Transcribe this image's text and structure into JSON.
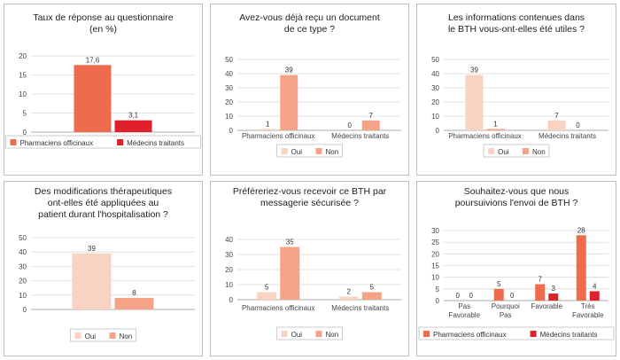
{
  "colors": {
    "light_peach": "#f9d2c2",
    "salmon": "#f4a387",
    "coral": "#ef6b4e",
    "red": "#e0202b",
    "grid": "#d9d9d9",
    "axis": "#999999"
  },
  "chart_data": [
    {
      "type": "bar",
      "title_lines": [
        "Taux de réponse au questionnaire",
        "(en %)"
      ],
      "categories": [
        ""
      ],
      "series": [
        {
          "name": "Pharmaciens officinaux",
          "values": [
            17.6
          ],
          "labels": [
            "17,6"
          ],
          "color": "#ef6b4e"
        },
        {
          "name": "Médecins traitants",
          "values": [
            3.1
          ],
          "labels": [
            "3,1"
          ],
          "color": "#e0202b"
        }
      ],
      "yticks": [
        "0",
        "5",
        "10",
        "15",
        "20"
      ],
      "ylim": [
        0,
        20
      ],
      "legend_position": "bottom"
    },
    {
      "type": "bar",
      "title_lines": [
        "Avez-vous déjà reçu un document",
        "de ce type ?"
      ],
      "categories": [
        "Pharmaciens officinaux",
        "Médecins traitants"
      ],
      "series": [
        {
          "name": "Oui",
          "values": [
            1,
            0
          ],
          "labels": [
            "1",
            "0"
          ],
          "color": "#f9d2c2"
        },
        {
          "name": "Non",
          "values": [
            39,
            7
          ],
          "labels": [
            "39",
            "7"
          ],
          "color": "#f4a387"
        }
      ],
      "yticks": [
        "0",
        "10",
        "20",
        "30",
        "40",
        "50"
      ],
      "ylim": [
        0,
        50
      ],
      "legend_position": "bottom"
    },
    {
      "type": "bar",
      "title_lines": [
        "Les informations contenues dans",
        "le BTH vous-ont-elles été utiles ?"
      ],
      "categories": [
        "Pharmaciens officinaux",
        "Médecins traitants"
      ],
      "series": [
        {
          "name": "Oui",
          "values": [
            39,
            7
          ],
          "labels": [
            "39",
            "7"
          ],
          "color": "#f9d2c2"
        },
        {
          "name": "Non",
          "values": [
            1,
            0
          ],
          "labels": [
            "1",
            "0"
          ],
          "color": "#f4a387"
        }
      ],
      "yticks": [
        "0",
        "10",
        "20",
        "30",
        "40",
        "50"
      ],
      "ylim": [
        0,
        50
      ],
      "legend_position": "bottom"
    },
    {
      "type": "bar",
      "title_lines": [
        "Des modifications thérapeutiques",
        "ont-elles été appliquées au",
        "patient durant l'hospitalisation ?"
      ],
      "categories": [
        ""
      ],
      "series": [
        {
          "name": "Oui",
          "values": [
            39
          ],
          "labels": [
            "39"
          ],
          "color": "#f9d2c2"
        },
        {
          "name": "Non",
          "values": [
            8
          ],
          "labels": [
            "8"
          ],
          "color": "#f4a387"
        }
      ],
      "yticks": [
        "0",
        "10",
        "20",
        "30",
        "40",
        "50"
      ],
      "ylim": [
        0,
        50
      ],
      "legend_position": "bottom"
    },
    {
      "type": "bar",
      "title_lines": [
        "Préféreriez-vous recevoir ce BTH par",
        "messagerie sécurisée ?"
      ],
      "categories": [
        "Pharmaciens officinaux",
        "Médecins traitants"
      ],
      "series": [
        {
          "name": "Oui",
          "values": [
            5,
            2
          ],
          "labels": [
            "5",
            "2"
          ],
          "color": "#f9d2c2"
        },
        {
          "name": "Non",
          "values": [
            35,
            5
          ],
          "labels": [
            "35",
            "5"
          ],
          "color": "#f4a387"
        }
      ],
      "yticks": [
        "0",
        "10",
        "20",
        "30",
        "40"
      ],
      "ylim": [
        0,
        40
      ],
      "legend_position": "bottom"
    },
    {
      "type": "bar",
      "title_lines": [
        "Souhaitez-vous que nous",
        "poursuivions l'envoi de BTH ?"
      ],
      "categories": [
        [
          "Pas",
          "Favorable"
        ],
        [
          "Pourquoi",
          "Pas"
        ],
        [
          "Favorable"
        ],
        [
          "Très",
          "Favorable"
        ]
      ],
      "series": [
        {
          "name": "Pharmaciens officinaux",
          "values": [
            0,
            5,
            7,
            28
          ],
          "labels": [
            "0",
            "5",
            "7",
            "28"
          ],
          "color": "#ef6b4e"
        },
        {
          "name": "Médecins traitants",
          "values": [
            0,
            0,
            3,
            4
          ],
          "labels": [
            "0",
            "0",
            "3",
            "4"
          ],
          "color": "#e0202b"
        }
      ],
      "yticks": [
        "0",
        "5",
        "10",
        "15",
        "20",
        "25",
        "30"
      ],
      "ylim": [
        0,
        30
      ],
      "legend_position": "bottom"
    }
  ]
}
